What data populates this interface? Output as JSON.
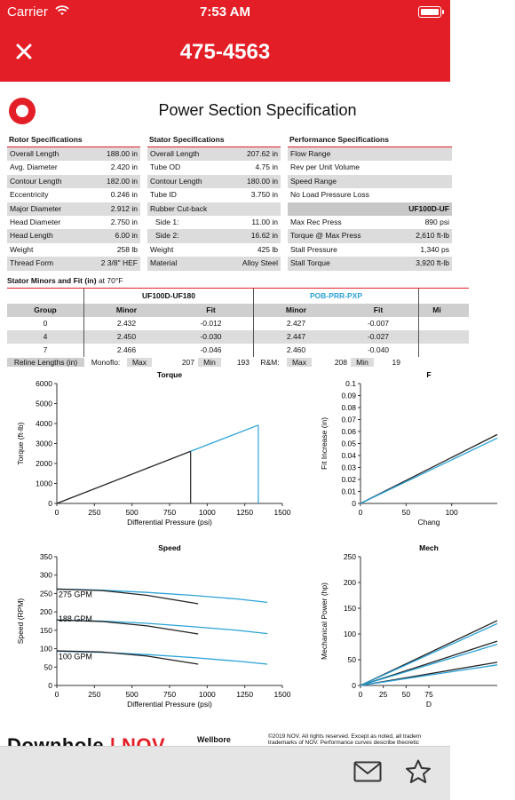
{
  "status_bar": {
    "carrier": "Carrier",
    "time": "7:53 AM"
  },
  "nav": {
    "close_icon": "close-icon",
    "title": "475-4563"
  },
  "document": {
    "title": "Power Section Specification",
    "rotor": {
      "heading": "Rotor Specifications",
      "rows": [
        {
          "label": "Overall Length",
          "value": "188.00 in"
        },
        {
          "label": "Avg. Diameter",
          "value": "2.420 in"
        },
        {
          "label": "Contour Length",
          "value": "182.00 in"
        },
        {
          "label": "Eccentricity",
          "value": "0.246 in"
        },
        {
          "label": "Major Diameter",
          "value": "2.912 in"
        },
        {
          "label": "Head Diameter",
          "value": "2.750 in"
        },
        {
          "label": "Head Length",
          "value": "6.00 in"
        },
        {
          "label": "Weight",
          "value": "258 lb"
        },
        {
          "label": "Thread Form",
          "value": "2 3/8\" HEF"
        }
      ]
    },
    "stator": {
      "heading": "Stator Specifications",
      "rows": [
        {
          "label": "Overall Length",
          "value": "207.62 in"
        },
        {
          "label": "Tube OD",
          "value": "4.75 in"
        },
        {
          "label": "Contour Length",
          "value": "180.00 in"
        },
        {
          "label": "Tube ID",
          "value": "3.750 in"
        },
        {
          "label": "Rubber Cut-back",
          "value": ""
        },
        {
          "label": "Side 1:",
          "value": "11.00 in"
        },
        {
          "label": "Side 2:",
          "value": "16.62 in"
        },
        {
          "label": "Weight",
          "value": "425 lb"
        },
        {
          "label": "Material",
          "value": "Alloy Steel"
        }
      ]
    },
    "performance": {
      "heading": "Performance Specifications",
      "rows": [
        {
          "label": "Flow Range",
          "value": ""
        },
        {
          "label": "Rev per Unit Volume",
          "value": ""
        },
        {
          "label": "Speed Range",
          "value": ""
        },
        {
          "label": "No Load Pressure Loss",
          "value": ""
        },
        {
          "label": "",
          "value": "UF100D-UF"
        },
        {
          "label": "Max Rec Press",
          "value": "890 psi"
        },
        {
          "label": "Torque @ Max Press",
          "value": "2,610 ft-lb"
        },
        {
          "label": "Stall Pressure",
          "value": "1,340 ps"
        },
        {
          "label": "Stall Torque",
          "value": "3,920 ft-lb"
        }
      ]
    },
    "minors": {
      "title_bold": "Stator Minors and Fit (in)",
      "title_rest": " at 70°F",
      "group_a": "UF100D-UF180",
      "group_b": "POB-PRR-PXP",
      "headers": [
        "Group",
        "Minor",
        "Fit",
        "Minor",
        "Fit",
        "Mi"
      ],
      "rows": [
        [
          "0",
          "2.432",
          "-0.012",
          "2.427",
          "-0.007"
        ],
        [
          "4",
          "2.450",
          "-0.030",
          "2.447",
          "-0.027"
        ],
        [
          "7",
          "2.466",
          "-0.046",
          "2.460",
          "-0.040"
        ]
      ]
    },
    "reline": {
      "label": "Reline Lengths (in)",
      "monoflo": "Monoflo:",
      "max_label": "Max",
      "max_value": "207",
      "min_label": "Min",
      "min_value": "193",
      "rm": "R&M:",
      "max_label_2": "Max",
      "max_value_2": "208",
      "min_label_2": "Min",
      "min_value_2": "19"
    },
    "footer": {
      "brand": "Downhole",
      "nov": "NOV",
      "wellbore": "Wellbore",
      "copyright_1": "©2019 NOV. All rights reserved. Except as noted, all tradem",
      "copyright_2": "trademarks of NOV. Performance curves describe theoretic"
    }
  },
  "chart_data": [
    {
      "type": "line",
      "title": "Torque",
      "xlabel": "Differential Pressure (psi)",
      "ylabel": "Torque (ft-lb)",
      "xlim": [
        0,
        1500
      ],
      "ylim": [
        0,
        6000
      ],
      "xticks": [
        0,
        250,
        500,
        750,
        1000,
        1250,
        1500
      ],
      "yticks": [
        0,
        1000,
        2000,
        3000,
        4000,
        5000,
        6000
      ],
      "series": [
        {
          "color": "#222222",
          "x": [
            0,
            890
          ],
          "y": [
            0,
            2610
          ]
        },
        {
          "color": "#2aa3d8",
          "x": [
            890,
            1340
          ],
          "y": [
            2610,
            3920
          ]
        }
      ],
      "markers": [
        {
          "x": 890,
          "y": 2610,
          "color": "#222222"
        },
        {
          "x": 1340,
          "y": 3920,
          "color": "#2aa3d8"
        }
      ]
    },
    {
      "type": "line",
      "title": "F",
      "xlabel": "Chang",
      "ylabel": "Fit Increase (in)",
      "xlim": [
        0,
        150
      ],
      "ylim": [
        0,
        0.1
      ],
      "xticks": [
        0,
        50,
        100
      ],
      "yticks": [
        0,
        0.01,
        0.02,
        0.03,
        0.04,
        0.05,
        0.06,
        0.07,
        0.08,
        0.09,
        0.1
      ],
      "series": [
        {
          "color": "#222222",
          "x": [
            0,
            150
          ],
          "y": [
            0,
            0.0575
          ]
        },
        {
          "color": "#2aa3d8",
          "x": [
            0,
            150
          ],
          "y": [
            0,
            0.0545
          ]
        }
      ]
    },
    {
      "type": "line",
      "title": "Speed",
      "xlabel": "Differential Pressure (psi)",
      "ylabel": "Speed (RPM)",
      "xlim": [
        0,
        1500
      ],
      "ylim": [
        0,
        350
      ],
      "xticks": [
        0,
        250,
        500,
        750,
        1000,
        1250,
        1500
      ],
      "yticks": [
        0,
        50,
        100,
        150,
        200,
        250,
        300,
        350
      ],
      "annotations": [
        {
          "text": "275 GPM",
          "x": 5,
          "y": 247
        },
        {
          "text": "188 GPM",
          "x": 5,
          "y": 181
        },
        {
          "text": "100 GPM",
          "x": 5,
          "y": 79
        }
      ],
      "series": [
        {
          "color": "#2aa3d8",
          "x": [
            0,
            300,
            600,
            900,
            1200,
            1400
          ],
          "y": [
            262,
            259,
            253,
            245,
            235,
            226
          ]
        },
        {
          "color": "#222222",
          "x": [
            0,
            300,
            600,
            940
          ],
          "y": [
            262,
            258,
            245,
            222
          ]
        },
        {
          "color": "#2aa3d8",
          "x": [
            0,
            300,
            600,
            900,
            1200,
            1400
          ],
          "y": [
            178,
            175,
            169,
            160,
            150,
            141
          ]
        },
        {
          "color": "#222222",
          "x": [
            0,
            300,
            600,
            940
          ],
          "y": [
            178,
            174,
            162,
            140
          ]
        },
        {
          "color": "#2aa3d8",
          "x": [
            0,
            300,
            600,
            900,
            1200,
            1400
          ],
          "y": [
            93,
            90,
            84,
            76,
            66,
            58
          ]
        },
        {
          "color": "#222222",
          "x": [
            0,
            300,
            600,
            940
          ],
          "y": [
            94,
            91,
            80,
            58
          ]
        }
      ]
    },
    {
      "type": "line",
      "title": "Mech",
      "xlabel": "D",
      "ylabel": "Mechanical Power (hp)",
      "xlim": [
        0,
        150
      ],
      "ylim": [
        0,
        250
      ],
      "xticks": [
        0,
        25,
        50,
        75
      ],
      "yticks": [
        0,
        50,
        100,
        150,
        200,
        250
      ],
      "series": [
        {
          "color": "#222222",
          "x": [
            0,
            150
          ],
          "y": [
            0,
            126
          ]
        },
        {
          "color": "#2aa3d8",
          "x": [
            0,
            150
          ],
          "y": [
            0,
            120
          ]
        },
        {
          "color": "#222222",
          "x": [
            0,
            150
          ],
          "y": [
            0,
            86
          ]
        },
        {
          "color": "#2aa3d8",
          "x": [
            0,
            150
          ],
          "y": [
            0,
            80
          ]
        },
        {
          "color": "#222222",
          "x": [
            0,
            150
          ],
          "y": [
            0,
            45
          ]
        },
        {
          "color": "#2aa3d8",
          "x": [
            0,
            150
          ],
          "y": [
            0,
            40
          ]
        }
      ]
    }
  ],
  "toolbar": {
    "mail_icon": "mail-icon",
    "star_icon": "star-icon"
  }
}
